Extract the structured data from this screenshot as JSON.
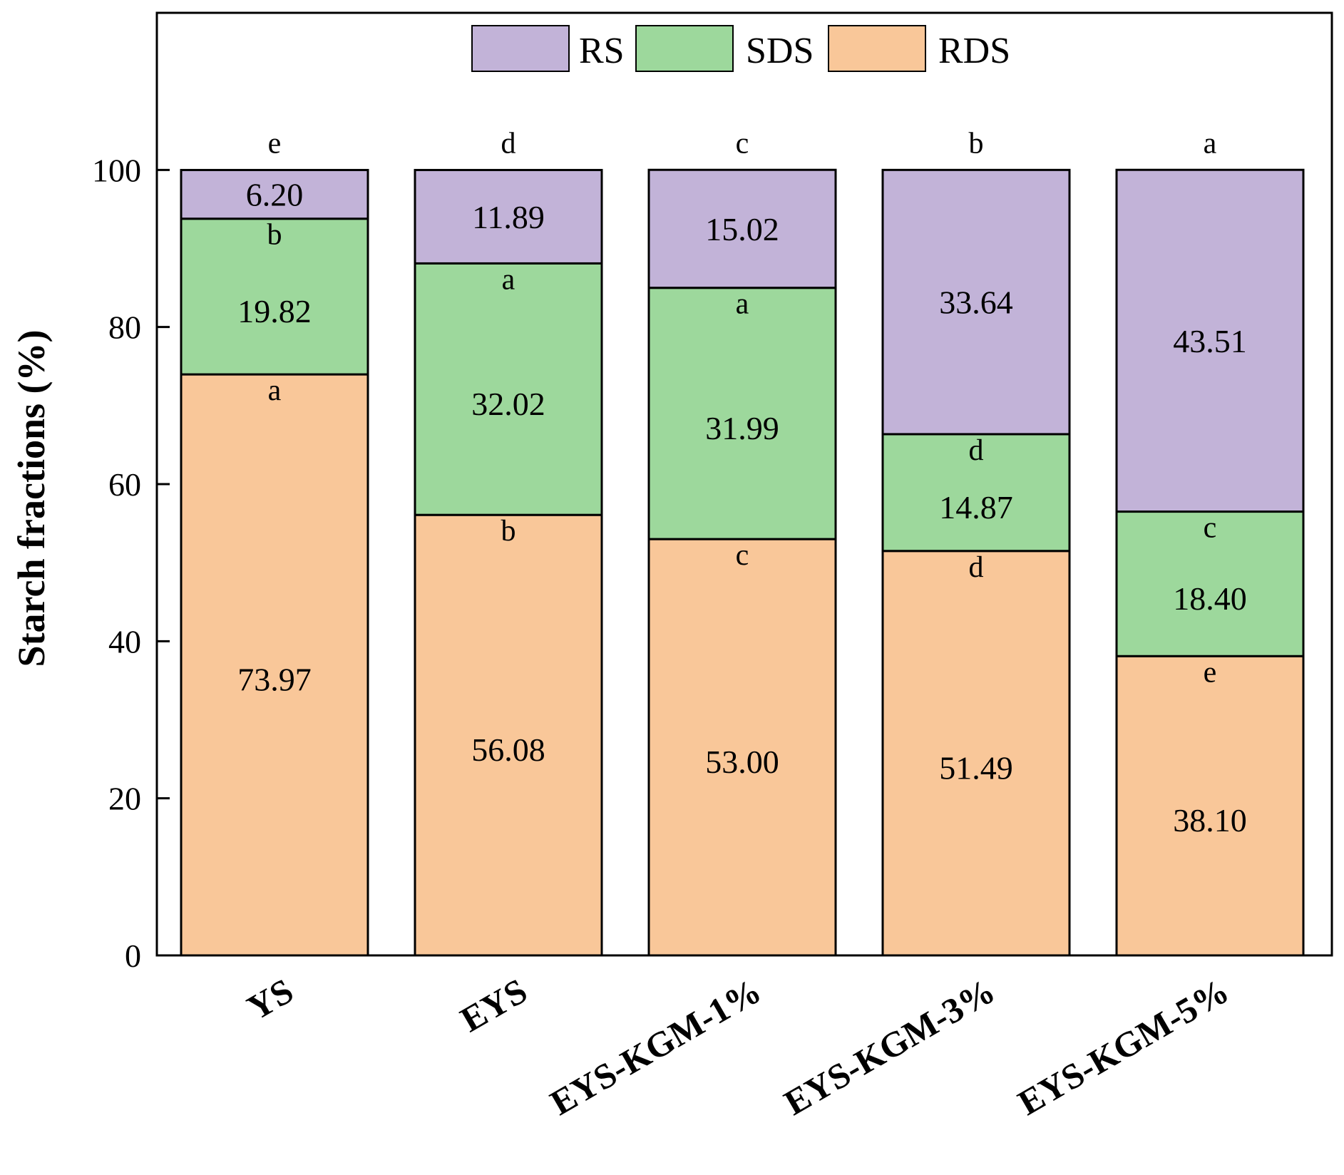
{
  "chart_data": {
    "type": "bar",
    "stacked": true,
    "title": "",
    "xlabel": "",
    "ylabel": "Starch fractions (%)",
    "ylim": [
      0,
      120
    ],
    "yticks": [
      0,
      20,
      40,
      60,
      80,
      100
    ],
    "grid": false,
    "legend_position": "top-center",
    "categories": [
      "YS",
      "EYS",
      "EYS-KGM-1%",
      "EYS-KGM-3%",
      "EYS-KGM-5%"
    ],
    "total_significance": [
      "e",
      "d",
      "c",
      "b",
      "a"
    ],
    "series": [
      {
        "name": "RDS",
        "color": "#F9C799",
        "values": [
          73.97,
          56.08,
          53.0,
          51.49,
          38.1
        ],
        "labels": [
          "73.97",
          "56.08",
          "53.00",
          "51.49",
          "38.10"
        ],
        "significance": [
          "a",
          "b",
          "c",
          "d",
          "e"
        ]
      },
      {
        "name": "SDS",
        "color": "#9DD89C",
        "values": [
          19.82,
          32.02,
          31.99,
          14.87,
          18.4
        ],
        "labels": [
          "19.82",
          "32.02",
          "31.99",
          "14.87",
          "18.40"
        ],
        "significance": [
          "b",
          "a",
          "a",
          "d",
          "c"
        ]
      },
      {
        "name": "RS",
        "color": "#C2B3D8",
        "values": [
          6.2,
          11.89,
          15.02,
          33.64,
          43.51
        ],
        "labels": [
          "6.20",
          "11.89",
          "15.02",
          "33.64",
          "43.51"
        ]
      }
    ],
    "legend": [
      {
        "name": "RS",
        "color": "#C2B3D8"
      },
      {
        "name": "SDS",
        "color": "#9DD89C"
      },
      {
        "name": "RDS",
        "color": "#F9C799"
      }
    ]
  }
}
